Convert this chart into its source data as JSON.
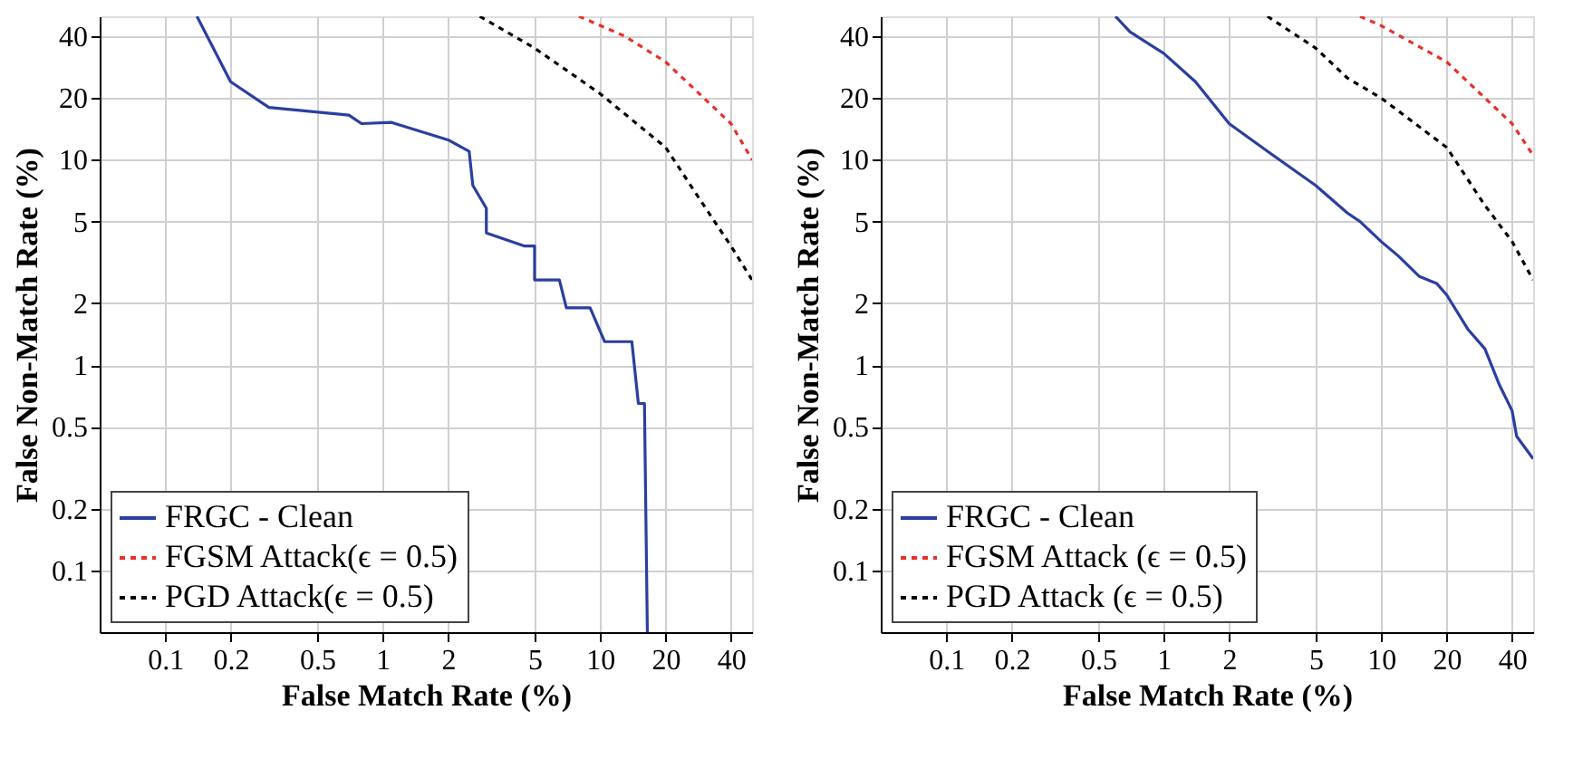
{
  "chart_data": [
    {
      "type": "line",
      "xlabel": "False Match Rate (%)",
      "ylabel": "False Non-Match Rate (%)",
      "log": "xy",
      "grid": true,
      "legend": "bottom left",
      "xlim": [
        0.05,
        50
      ],
      "ylim": [
        0.05,
        50
      ],
      "xticks": [
        0.1,
        0.2,
        0.5,
        1,
        2,
        5,
        10,
        20,
        40
      ],
      "yticks": [
        0.1,
        0.2,
        0.5,
        1,
        2,
        5,
        10,
        20,
        40
      ],
      "series": [
        {
          "name": "FRGC - Clean",
          "color": "#2b3fa0",
          "line_style": "solid",
          "x": [
            0.14,
            0.2,
            0.3,
            0.7,
            0.8,
            1.1,
            2,
            2.5,
            2.6,
            3,
            3,
            4.5,
            5,
            5,
            6.5,
            7,
            9,
            10.5,
            14,
            15,
            16,
            16.5
          ],
          "values": [
            50,
            24,
            18,
            16.5,
            15,
            15.2,
            12.5,
            11,
            7.5,
            5.8,
            4.4,
            3.8,
            3.8,
            2.6,
            2.6,
            1.9,
            1.9,
            1.3,
            1.3,
            0.65,
            0.65,
            0.05
          ]
        },
        {
          "name": "FGSM Attack(ϵ = 0.5)",
          "color": "#e8302a",
          "line_style": "dashed",
          "x": [
            8,
            13,
            20,
            30,
            40,
            50
          ],
          "values": [
            50,
            40,
            30,
            20,
            15,
            10
          ]
        },
        {
          "name": "PGD Attack(ϵ = 0.5)",
          "color": "#000000",
          "line_style": "dashed",
          "x": [
            2.8,
            5,
            10,
            20,
            30,
            40,
            50
          ],
          "values": [
            50,
            35,
            21,
            11.5,
            6,
            3.8,
            2.6
          ]
        }
      ]
    },
    {
      "type": "line",
      "xlabel": "False Match Rate (%)",
      "ylabel": "False Non-Match Rate (%)",
      "log": "xy",
      "grid": true,
      "legend": "bottom left",
      "xlim": [
        0.05,
        50
      ],
      "ylim": [
        0.05,
        50
      ],
      "xticks": [
        0.1,
        0.2,
        0.5,
        1,
        2,
        5,
        10,
        20,
        40
      ],
      "yticks": [
        0.1,
        0.2,
        0.5,
        1,
        2,
        5,
        10,
        20,
        40
      ],
      "series": [
        {
          "name": "FRGC - Clean",
          "color": "#2b3fa0",
          "line_style": "solid",
          "x": [
            0.6,
            0.7,
            1,
            1.4,
            2,
            3,
            5,
            7,
            8,
            10,
            12,
            15,
            18,
            20,
            25,
            30,
            35,
            40,
            42,
            50
          ],
          "values": [
            50,
            42,
            33,
            24,
            15,
            11,
            7.5,
            5.5,
            5,
            4,
            3.4,
            2.7,
            2.5,
            2.2,
            1.5,
            1.2,
            0.8,
            0.6,
            0.45,
            0.35
          ]
        },
        {
          "name": "FGSM Attack (ϵ = 0.5)",
          "color": "#e8302a",
          "line_style": "dashed",
          "x": [
            8,
            10,
            20,
            30,
            40,
            50
          ],
          "values": [
            50,
            45,
            30,
            20,
            15,
            10.5
          ]
        },
        {
          "name": "PGD Attack (ϵ = 0.5)",
          "color": "#000000",
          "line_style": "dashed",
          "x": [
            3,
            5,
            7,
            10,
            20,
            30,
            40,
            50
          ],
          "values": [
            50,
            35,
            25,
            20,
            11.5,
            6,
            4,
            2.6
          ]
        }
      ]
    }
  ]
}
